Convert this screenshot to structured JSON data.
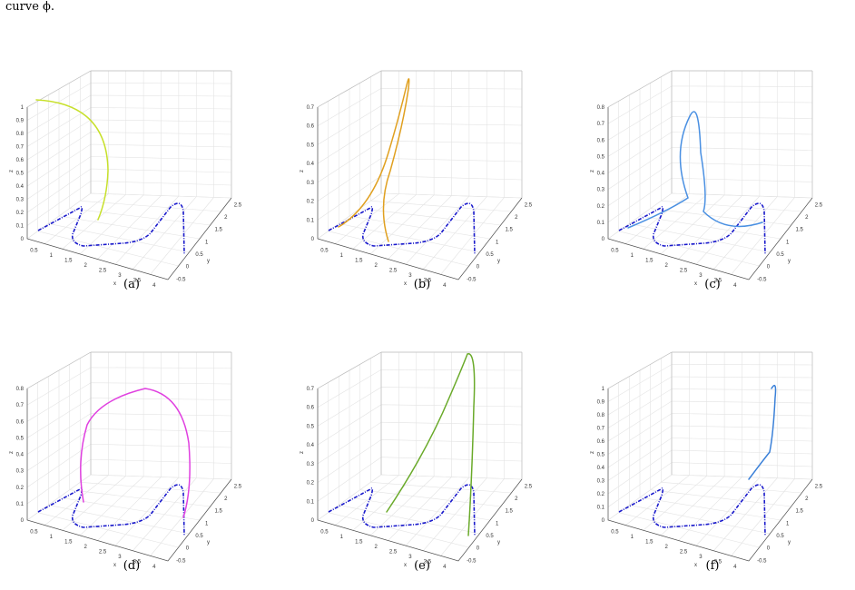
{
  "caption_fragment": "curve ϕ.",
  "figures": [
    {
      "label": "(a)",
      "z_ticks": [
        "0",
        "0.1",
        "0.2",
        "0.3",
        "0.4",
        "0.5",
        "0.6",
        "0.7",
        "0.8",
        "0.9",
        "1"
      ],
      "x_ticks": [
        "0.5",
        "1",
        "1.5",
        "2",
        "2.5",
        "3",
        "3.5",
        "4"
      ],
      "y_ticks": [
        "-0.5",
        "0",
        "0.5",
        "1",
        "1.5",
        "2",
        "2.5"
      ],
      "z_axis_label": "z",
      "x_axis_label": "x",
      "y_axis_label": "y",
      "curve_color": "#c7e02a"
    },
    {
      "label": "(b)",
      "z_ticks": [
        "0",
        "0.1",
        "0.2",
        "0.3",
        "0.4",
        "0.5",
        "0.6",
        "0.7"
      ],
      "x_ticks": [
        "0.5",
        "1",
        "1.5",
        "2",
        "2.5",
        "3",
        "3.5",
        "4"
      ],
      "y_ticks": [
        "-0.5",
        "0",
        "0.5",
        "1",
        "1.5",
        "2",
        "2.5"
      ],
      "z_axis_label": "z",
      "x_axis_label": "x",
      "y_axis_label": "y",
      "curve_color": "#e0a020"
    },
    {
      "label": "(c)",
      "z_ticks": [
        "0",
        "0.1",
        "0.2",
        "0.3",
        "0.4",
        "0.5",
        "0.6",
        "0.7",
        "0.8"
      ],
      "x_ticks": [
        "0.5",
        "1",
        "1.5",
        "2",
        "2.5",
        "3",
        "3.5",
        "4"
      ],
      "y_ticks": [
        "-0.5",
        "0",
        "0.5",
        "1",
        "1.5",
        "2",
        "2.5"
      ],
      "z_axis_label": "z",
      "x_axis_label": "x",
      "y_axis_label": "y",
      "curve_color": "#4a90e2"
    },
    {
      "label": "(d)",
      "z_ticks": [
        "0",
        "0.1",
        "0.2",
        "0.3",
        "0.4",
        "0.5",
        "0.6",
        "0.7",
        "0.8"
      ],
      "x_ticks": [
        "0.5",
        "1",
        "1.5",
        "2",
        "2.5",
        "3",
        "3.5",
        "4"
      ],
      "y_ticks": [
        "-0.5",
        "0",
        "0.5",
        "1",
        "1.5",
        "2",
        "2.5"
      ],
      "z_axis_label": "z",
      "x_axis_label": "x",
      "y_axis_label": "y",
      "curve_color": "#e040e0"
    },
    {
      "label": "(e)",
      "z_ticks": [
        "0",
        "0.1",
        "0.2",
        "0.3",
        "0.4",
        "0.5",
        "0.6",
        "0.7"
      ],
      "x_ticks": [
        "0.5",
        "1",
        "1.5",
        "2",
        "2.5",
        "3",
        "3.5",
        "4"
      ],
      "y_ticks": [
        "-0.5",
        "0",
        "0.5",
        "1",
        "1.5",
        "2",
        "2.5"
      ],
      "z_axis_label": "z",
      "x_axis_label": "x",
      "y_axis_label": "y",
      "curve_color": "#6aaa2a"
    },
    {
      "label": "(f)",
      "z_ticks": [
        "0",
        "0.1",
        "0.2",
        "0.3",
        "0.4",
        "0.5",
        "0.6",
        "0.7",
        "0.8",
        "0.9",
        "1"
      ],
      "x_ticks": [
        "0.5",
        "1",
        "1.5",
        "2",
        "2.5",
        "3",
        "3.5",
        "4"
      ],
      "y_ticks": [
        "-0.5",
        "0",
        "0.5",
        "1",
        "1.5",
        "2",
        "2.5"
      ],
      "z_axis_label": "z",
      "x_axis_label": "x",
      "y_axis_label": "y",
      "curve_color": "#3a80d8"
    }
  ],
  "base_curve_color": "#1a1acc"
}
